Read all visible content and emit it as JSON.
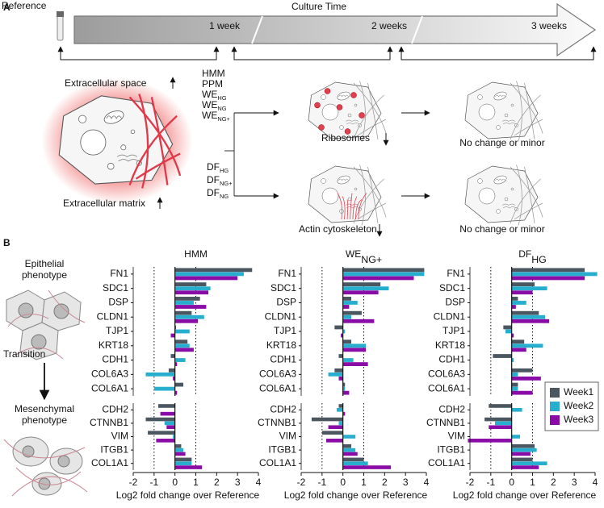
{
  "panel_a": {
    "label": "A",
    "reference": "Reference",
    "timeline_title": "Culture Time",
    "timepoints": [
      "1 week",
      "2 weeks",
      "3 weeks"
    ],
    "extracellular_space": "Extracellular space",
    "extracellular_matrix": "Extracellular matrix",
    "group_1": [
      {
        "text": "HMM"
      },
      {
        "text": "PPM"
      },
      {
        "text": "WE",
        "sub": "HG"
      },
      {
        "text": "WE",
        "sub": "NG"
      },
      {
        "text": "WE",
        "sub": "NG+"
      }
    ],
    "group_2": [
      {
        "text": "DF",
        "sub": "HG"
      },
      {
        "text": "DF",
        "sub": "NG+"
      },
      {
        "text": "DF",
        "sub": "NG"
      }
    ],
    "group_1_effect": "Ribosomes",
    "group_2_effect": "Actin cytoskeleton",
    "later_effects": [
      "No change or minor",
      "No change or minor"
    ]
  },
  "panel_b": {
    "label": "B",
    "epithelial": [
      "Epithelial",
      "phenotype"
    ],
    "transition": "Transition",
    "mesenchymal": [
      "Mesenchymal",
      "phenotype"
    ]
  },
  "chart_data": [
    {
      "type": "bar",
      "orientation": "horizontal",
      "title": "HMM",
      "categories": [
        "FN1",
        "SDC1",
        "DSP",
        "CLDN1",
        "TJP1",
        "KRT18",
        "CDH1",
        "COL6A3",
        "COL6A1",
        "CDH2",
        "CTNNB1",
        "VIM",
        "ITGB1",
        "COL1A1"
      ],
      "category_groups": [
        9,
        5
      ],
      "series": [
        {
          "name": "Week1",
          "color": "#4a5761",
          "values": [
            3.7,
            1.5,
            1.2,
            0.8,
            0.05,
            0.6,
            -0.2,
            -0.3,
            0.4,
            -0.8,
            -1.4,
            -1.3,
            0.3,
            0.8
          ]
        },
        {
          "name": "Week2",
          "color": "#27aecf",
          "values": [
            3.3,
            1.7,
            0.9,
            1.4,
            0.7,
            0.7,
            0.5,
            -1.4,
            -1.0,
            0.0,
            -0.5,
            -0.1,
            0.4,
            0.8
          ]
        },
        {
          "name": "Week3",
          "color": "#8a0ca7",
          "values": [
            3.0,
            1.6,
            1.5,
            1.1,
            -0.2,
            0.9,
            0.1,
            -0.1,
            0.1,
            -0.7,
            -0.4,
            -0.9,
            0.5,
            1.3
          ]
        }
      ],
      "xlim": [
        -2,
        4
      ],
      "xticks": [
        -2,
        -1,
        0,
        1,
        2,
        3,
        4
      ],
      "xlabel": "Log2 fold change over Reference",
      "reference_lines": [
        -1,
        1
      ]
    },
    {
      "type": "bar",
      "orientation": "horizontal",
      "title": "WE",
      "title_sub": "NG+",
      "categories": [
        "FN1",
        "SDC1",
        "DSP",
        "CLDN1",
        "TJP1",
        "KRT18",
        "CDH1",
        "COL6A3",
        "COL6A1",
        "CDH2",
        "CTNNB1",
        "VIM",
        "ITGB1",
        "COL1A1"
      ],
      "category_groups": [
        9,
        5
      ],
      "series": [
        {
          "name": "Week1",
          "color": "#4a5761",
          "values": [
            3.9,
            1.8,
            0.4,
            0.9,
            -0.4,
            0.4,
            -0.2,
            -0.4,
            0.1,
            -0.2,
            -1.5,
            -1.0,
            0.4,
            1.0
          ]
        },
        {
          "name": "Week2",
          "color": "#27aecf",
          "values": [
            3.9,
            2.2,
            0.7,
            0.4,
            0.1,
            1.1,
            0.5,
            -0.7,
            0.1,
            -0.3,
            -0.2,
            0.6,
            0.6,
            1.2
          ]
        },
        {
          "name": "Week3",
          "color": "#8a0ca7",
          "values": [
            3.4,
            1.7,
            0.3,
            1.5,
            -0.1,
            1.1,
            1.2,
            -0.2,
            0.3,
            0.1,
            -0.7,
            -0.8,
            0.7,
            2.3
          ]
        }
      ],
      "xlim": [
        -2,
        4
      ],
      "xticks": [
        -2,
        -1,
        0,
        1,
        2,
        3,
        4
      ],
      "xlabel": "Log2 fold change over Reference",
      "reference_lines": [
        -1,
        1
      ]
    },
    {
      "type": "bar",
      "orientation": "horizontal",
      "title": "DF",
      "title_sub": "HG",
      "categories": [
        "FN1",
        "SDC1",
        "DSP",
        "CLDN1",
        "TJP1",
        "KRT18",
        "CDH1",
        "COL6A3",
        "COL6A1",
        "CDH2",
        "CTNNB1",
        "VIM",
        "ITGB1",
        "COL1A1"
      ],
      "category_groups": [
        9,
        5
      ],
      "series": [
        {
          "name": "Week1",
          "color": "#4a5761",
          "values": [
            3.5,
            1.1,
            0.3,
            1.3,
            -0.4,
            0.6,
            -0.9,
            1.0,
            0.3,
            -1.1,
            -1.3,
            0.0,
            1.1,
            1.0
          ]
        },
        {
          "name": "Week2",
          "color": "#27aecf",
          "values": [
            4.1,
            1.7,
            0.7,
            1.6,
            -0.3,
            1.5,
            0.1,
            0.3,
            0.3,
            0.5,
            -0.8,
            0.4,
            1.2,
            1.7
          ]
        },
        {
          "name": "Week3",
          "color": "#8a0ca7",
          "values": [
            3.5,
            1.0,
            0.2,
            1.8,
            0.1,
            0.7,
            0.0,
            1.4,
            1.0,
            0.0,
            -1.1,
            -2.1,
            0.9,
            1.3
          ]
        }
      ],
      "xlim": [
        -2,
        4
      ],
      "xticks": [
        -2,
        -1,
        0,
        1,
        2,
        3,
        4
      ],
      "xlabel": "Log2 fold change over Reference",
      "reference_lines": [
        -1,
        1
      ],
      "legend": "lower right"
    }
  ]
}
